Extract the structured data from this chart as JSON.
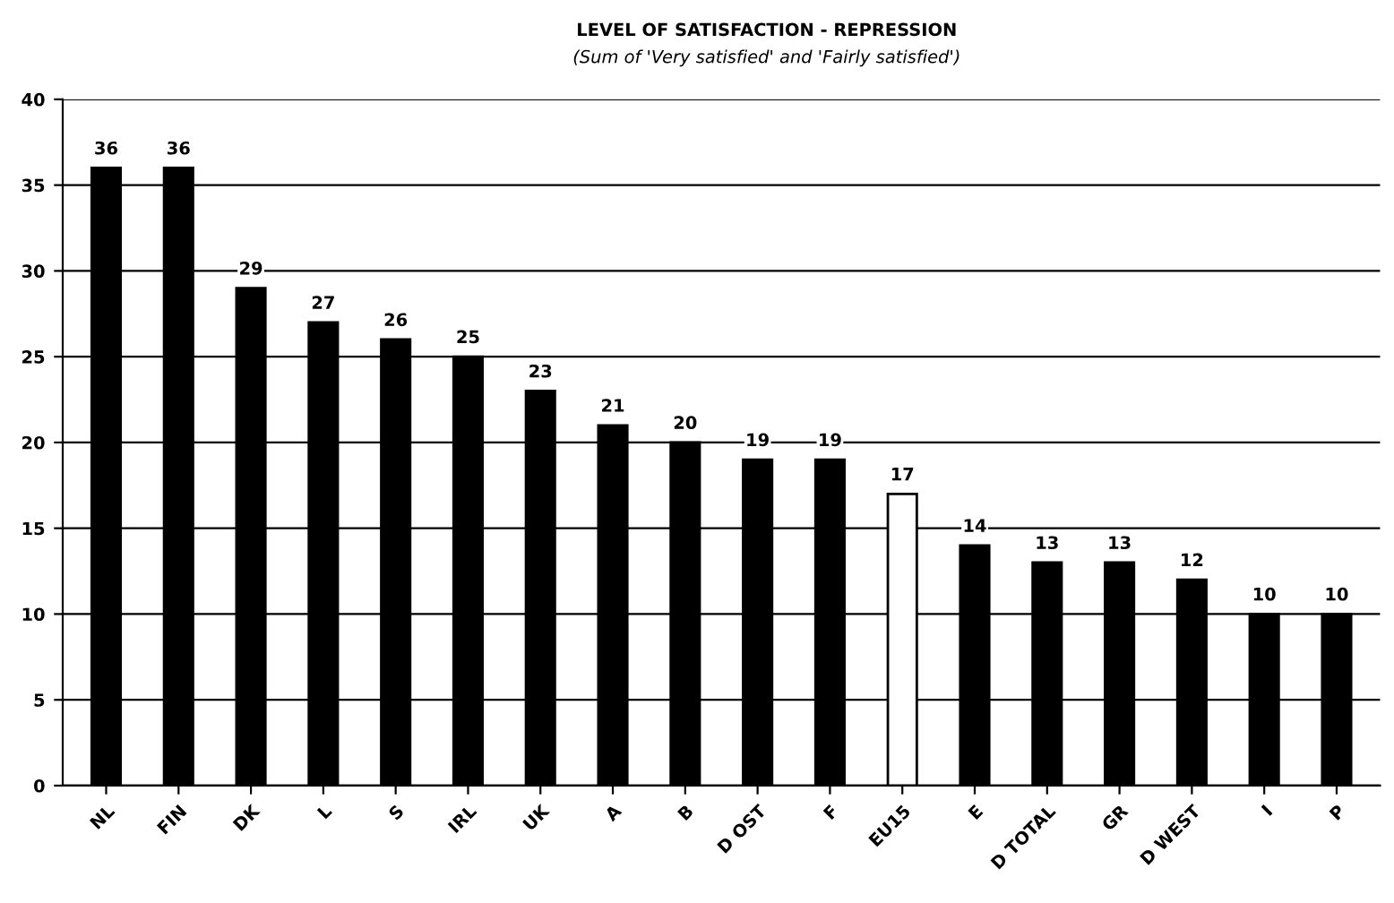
{
  "chart_data": {
    "type": "bar",
    "title": "LEVEL OF SATISFACTION - REPRESSION",
    "subtitle": "(Sum of 'Very satisfied' and 'Fairly satisfied')",
    "categories": [
      "NL",
      "FIN",
      "DK",
      "L",
      "S",
      "IRL",
      "UK",
      "A",
      "B",
      "D OST",
      "F",
      "EU15",
      "E",
      "D TOTAL",
      "GR",
      "D WEST",
      "I",
      "P"
    ],
    "values": [
      36,
      36,
      29,
      27,
      26,
      25,
      23,
      21,
      20,
      19,
      19,
      17,
      14,
      13,
      13,
      12,
      10,
      10
    ],
    "colors": [
      "#000000",
      "#000000",
      "#000000",
      "#000000",
      "#000000",
      "#000000",
      "#000000",
      "#000000",
      "#000000",
      "#000000",
      "#000000",
      "#ffffff",
      "#000000",
      "#000000",
      "#000000",
      "#000000",
      "#000000",
      "#000000"
    ],
    "ylim": [
      0,
      40
    ],
    "yticks": [
      0,
      5,
      10,
      15,
      20,
      25,
      30,
      35,
      40
    ],
    "grid": "y",
    "data_labels": true
  }
}
